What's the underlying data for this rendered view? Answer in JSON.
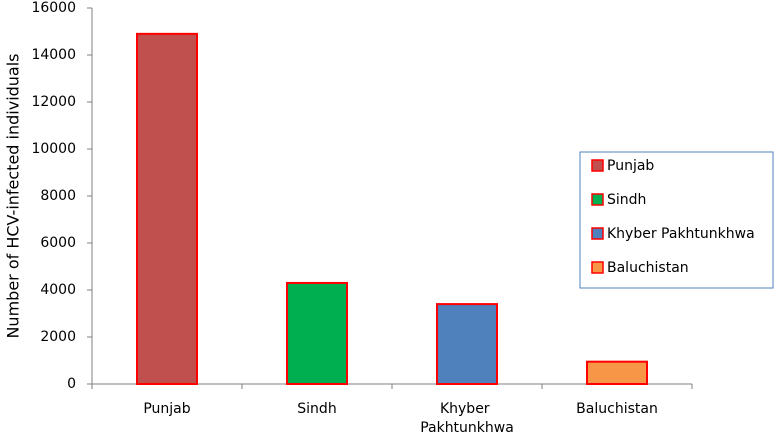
{
  "chart_data": {
    "type": "bar",
    "y_label": "Number of HCV-infected individuals",
    "categories": [
      "Punjab",
      "Sindh",
      "Khyber Pakhtunkhwa",
      "Baluchistan"
    ],
    "values": [
      14900,
      4300,
      3400,
      950
    ],
    "colors": [
      "#c0504d",
      "#00b050",
      "#4f81bd",
      "#f79646"
    ],
    "edge_color": "#ff0000",
    "ylim": [
      0,
      16000
    ],
    "yticks": [
      0,
      2000,
      4000,
      6000,
      8000,
      10000,
      12000,
      14000,
      16000
    ],
    "grid": false,
    "legend": "right"
  }
}
